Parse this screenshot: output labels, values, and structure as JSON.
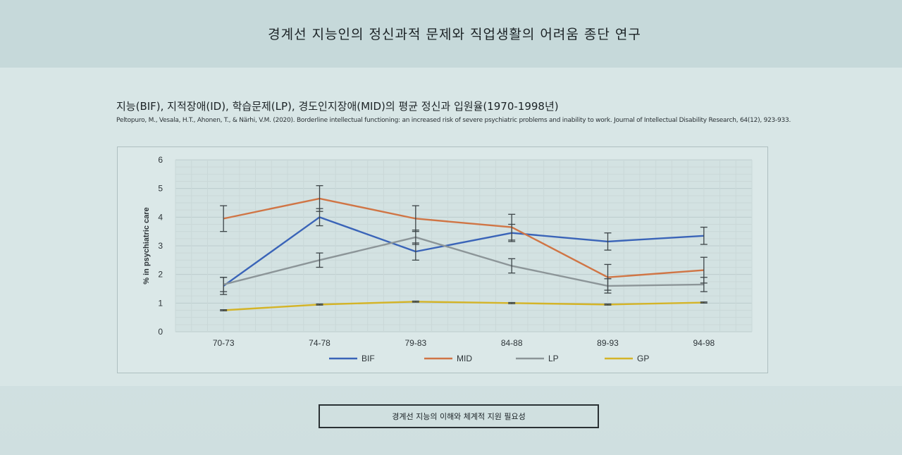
{
  "page": {
    "title": "경계선 지능인의 정신과적 문제와 직업생활의 어려움 종단 연구"
  },
  "chart_heading": "지능(BIF), 지적장애(ID), 학습문제(LP), 경도인지장애(MID)의 평균 정신과 입원율(1970-1998년)",
  "citation": "Peltopuro, M., Vesala, H.T., Ahonen, T., & Närhi, V.M. (2020). Borderline intellectual functioning: an increased risk of severe psychiatric problems and inability to work. Journal of Intellectual Disability Research, 64(12), 923-933.",
  "footer_button": "경계선 지능의 이해와 체계적 지원 필요성",
  "colors": {
    "BIF": "#3a64b8",
    "MID": "#d07545",
    "LP": "#8c9598",
    "GP": "#d4b428"
  },
  "chart_data": {
    "type": "line",
    "categories": [
      "70-73",
      "74-78",
      "79-83",
      "84-88",
      "89-93",
      "94-98"
    ],
    "ylabel": "% in psychiatric care",
    "ylim": [
      0,
      6
    ],
    "yticks": [
      0,
      1,
      2,
      3,
      4,
      5,
      6
    ],
    "grid": true,
    "legend_position": "bottom",
    "series": [
      {
        "name": "BIF",
        "values": [
          1.6,
          4.0,
          2.8,
          3.45,
          3.15,
          3.35
        ],
        "err": [
          0.3,
          0.3,
          0.3,
          0.3,
          0.3,
          0.3
        ]
      },
      {
        "name": "MID",
        "values": [
          3.95,
          4.65,
          3.95,
          3.65,
          1.9,
          2.15
        ],
        "err": [
          0.45,
          0.45,
          0.45,
          0.45,
          0.45,
          0.45
        ]
      },
      {
        "name": "LP",
        "values": [
          1.65,
          2.5,
          3.3,
          2.3,
          1.6,
          1.65
        ],
        "err": [
          0.25,
          0.25,
          0.25,
          0.25,
          0.25,
          0.25
        ]
      },
      {
        "name": "GP",
        "values": [
          0.75,
          0.95,
          1.05,
          1.0,
          0.95,
          1.02
        ],
        "err": [
          0.02,
          0.02,
          0.02,
          0.02,
          0.02,
          0.02
        ]
      }
    ]
  }
}
